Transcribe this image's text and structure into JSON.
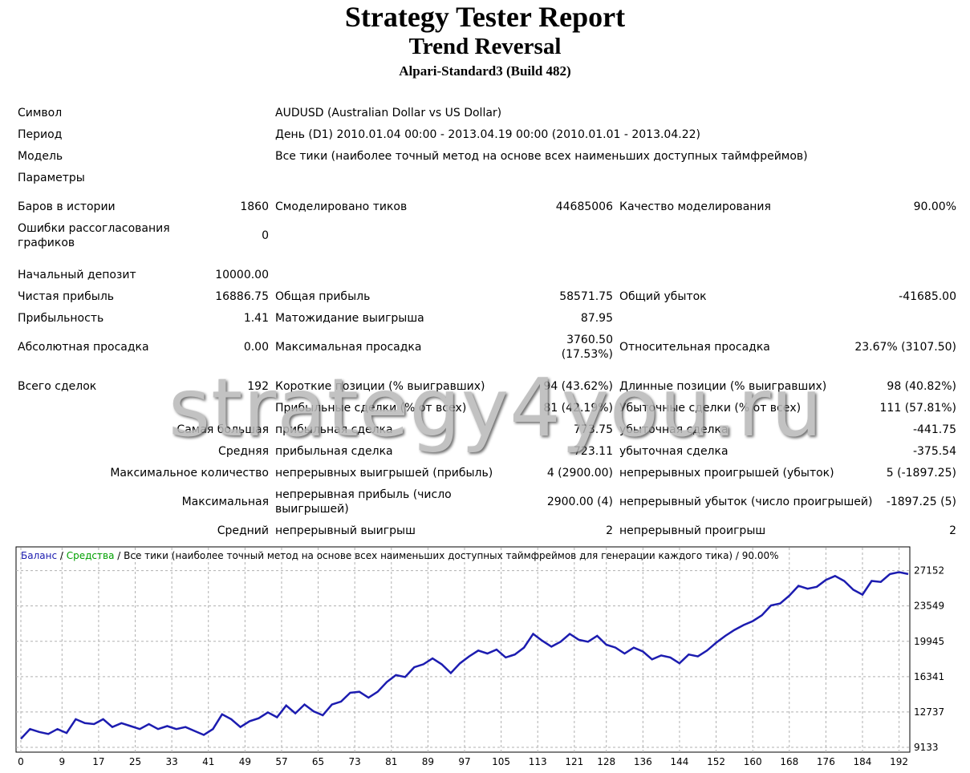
{
  "header": {
    "title": "Strategy Tester Report",
    "subtitle": "Trend Reversal",
    "server": "Alpari-Standard3 (Build 482)"
  },
  "info": {
    "symbol_label": "Символ",
    "symbol_value": "AUDUSD (Australian Dollar vs US Dollar)",
    "period_label": "Период",
    "period_value": "День (D1) 2010.01.04 00:00 - 2013.04.19 00:00 (2010.01.01 - 2013.04.22)",
    "model_label": "Модель",
    "model_value": "Все тики (наиболее точный метод на основе всех наименьших доступных таймфреймов)",
    "params_label": "Параметры"
  },
  "stats": {
    "bars_label": "Баров в истории",
    "bars_value": "1860",
    "ticks_label": "Смоделировано тиков",
    "ticks_value": "44685006",
    "quality_label": "Качество моделирования",
    "quality_value": "90.00%",
    "errors_label": "Ошибки рассогласования графиков",
    "errors_value": "0",
    "deposit_label": "Начальный депозит",
    "deposit_value": "10000.00",
    "net_label": "Чистая прибыль",
    "net_value": "16886.75",
    "gross_profit_label": "Общая прибыль",
    "gross_profit_value": "58571.75",
    "gross_loss_label": "Общий убыток",
    "gross_loss_value": "-41685.00",
    "pf_label": "Прибыльность",
    "pf_value": "1.41",
    "payoff_label": "Матожидание выигрыша",
    "payoff_value": "87.95",
    "abs_dd_label": "Абсолютная просадка",
    "abs_dd_value": "0.00",
    "max_dd_label": "Максимальная просадка",
    "max_dd_value": "3760.50",
    "max_dd_pct": "(17.53%)",
    "rel_dd_label": "Относительная просадка",
    "rel_dd_value": "23.67% (3107.50)",
    "total_label": "Всего сделок",
    "total_value": "192",
    "short_label": "Короткие позиции (% выигравших)",
    "short_value": "94 (43.62%)",
    "long_label": "Длинные позиции (% выигравших)",
    "long_value": "98 (40.82%)",
    "profit_trades_label": "Прибыльные сделки (% от всех)",
    "profit_trades_value": "81 (42.19%)",
    "loss_trades_label": "Убыточные сделки (% от всех)",
    "loss_trades_value": "111 (57.81%)",
    "largest_label": "Самая большая",
    "largest_profit_label": "прибыльная сделка",
    "largest_profit_value": "773.75",
    "largest_loss_label": "убыточная сделка",
    "largest_loss_value": "-441.75",
    "average_label": "Средняя",
    "avg_profit_label": "прибыльная сделка",
    "avg_profit_value": "723.11",
    "avg_loss_label": "убыточная сделка",
    "avg_loss_value": "-375.54",
    "maxcount_label": "Максимальное количество",
    "cons_wins_label": "непрерывных выигрышей (прибыль)",
    "cons_wins_value": "4 (2900.00)",
    "cons_losses_label": "непрерывных проигрышей (убыток)",
    "cons_losses_value": "5 (-1897.25)",
    "maximal_label": "Максимальная",
    "cons_profit_label": "непрерывная прибыль (число выигрышей)",
    "cons_profit_value": "2900.00 (4)",
    "cons_loss_label": "непрерывный убыток (число проигрышей)",
    "cons_loss_value": "-1897.25 (5)",
    "avg2_label": "Средний",
    "avg_cons_win_label": "непрерывный выигрыш",
    "avg_cons_win_value": "2",
    "avg_cons_loss_label": "непрерывный проигрыш",
    "avg_cons_loss_value": "2"
  },
  "watermark": "strategy4you.ru",
  "colors": {
    "balance": "#1c1cb0",
    "equity": "#00a000",
    "grid": "#b0b0b0"
  },
  "chart_data": {
    "type": "line",
    "legend": {
      "balance": "Баланс",
      "sep1": " / ",
      "equity": "Средства",
      "sep2": " / ",
      "rest": "Все тики (наиболее точный метод на основе всех наименьших доступных таймфреймов для генерации каждого тика) / 90.00%"
    },
    "x_ticks": [
      0,
      9,
      17,
      25,
      33,
      41,
      49,
      57,
      65,
      73,
      81,
      89,
      97,
      105,
      113,
      121,
      128,
      136,
      144,
      152,
      160,
      168,
      176,
      184,
      192
    ],
    "y_ticks": [
      9133,
      12737,
      16341,
      19945,
      23549,
      27152
    ],
    "xlim": [
      0,
      194
    ],
    "ylim": [
      9133,
      28100
    ],
    "series": [
      {
        "name": "Баланс",
        "x": [
          0,
          2,
          4,
          6,
          8,
          10,
          12,
          14,
          16,
          18,
          20,
          22,
          24,
          26,
          28,
          30,
          32,
          34,
          36,
          38,
          40,
          42,
          44,
          46,
          48,
          50,
          52,
          54,
          56,
          58,
          60,
          62,
          64,
          66,
          68,
          70,
          72,
          74,
          76,
          78,
          80,
          82,
          84,
          86,
          88,
          90,
          92,
          94,
          96,
          98,
          100,
          102,
          104,
          106,
          108,
          110,
          112,
          114,
          116,
          118,
          120,
          122,
          124,
          126,
          128,
          130,
          132,
          134,
          136,
          138,
          140,
          142,
          144,
          146,
          148,
          150,
          152,
          154,
          156,
          158,
          160,
          162,
          164,
          166,
          168,
          170,
          172,
          174,
          176,
          178,
          180,
          182,
          184,
          186,
          188,
          190,
          192,
          194
        ],
        "y": [
          10000,
          11000,
          10700,
          10500,
          11000,
          10600,
          12000,
          11600,
          11500,
          12000,
          11200,
          11600,
          11300,
          11000,
          11500,
          11000,
          11300,
          11000,
          11200,
          10800,
          10400,
          11000,
          12500,
          12000,
          11200,
          11800,
          12100,
          12700,
          12200,
          13400,
          12600,
          13500,
          12800,
          12400,
          13500,
          13800,
          14700,
          14800,
          14200,
          14800,
          15800,
          16500,
          16300,
          17300,
          17600,
          18200,
          17600,
          16700,
          17700,
          18400,
          19000,
          18700,
          19100,
          18300,
          18600,
          19300,
          20700,
          20000,
          19400,
          19900,
          20700,
          20100,
          19900,
          20500,
          19600,
          19300,
          18700,
          19300,
          18900,
          18100,
          18500,
          18300,
          17700,
          18600,
          18400,
          19000,
          19800,
          20500,
          21100,
          21600,
          22000,
          22600,
          23600,
          23800,
          24600,
          25600,
          25300,
          25500,
          26200,
          26600,
          26100,
          25200,
          24700,
          26100,
          26000,
          26800,
          27000,
          26800
        ]
      }
    ]
  }
}
